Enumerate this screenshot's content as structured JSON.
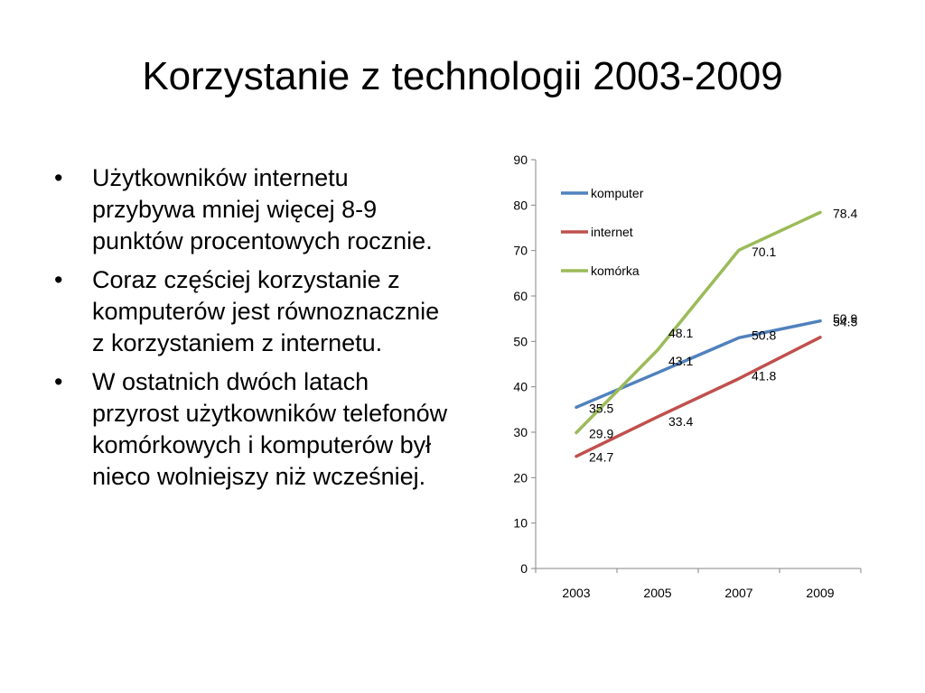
{
  "slide": {
    "title": "Korzystanie z technologii 2003-2009",
    "bullets": [
      "Użytkowników internetu przybywa mniej więcej 8-9 punktów procentowych rocznie.",
      "Coraz częściej korzystanie z komputerów jest równoznacznie z korzystaniem z internetu.",
      "W ostatnich dwóch latach przyrost użytkowników telefonów komórkowych i komputerów był nieco wolniejszy niż wcześniej."
    ]
  },
  "chart_data": {
    "type": "line",
    "categories": [
      "2003",
      "2005",
      "2007",
      "2009"
    ],
    "ylim": [
      0,
      90
    ],
    "yticks": [
      0,
      10,
      20,
      30,
      40,
      50,
      60,
      70,
      80,
      90
    ],
    "grid": false,
    "legend": "top-left",
    "series": [
      {
        "name": "komputer",
        "color": "#4f81bd",
        "values": [
          35.5,
          43.1,
          50.8,
          54.5
        ],
        "labels": [
          "35.5",
          "43.1",
          "50.8",
          "54.5"
        ]
      },
      {
        "name": "internet",
        "color": "#c0504d",
        "values": [
          24.7,
          33.4,
          41.8,
          50.9
        ],
        "labels": [
          "24.7",
          "33.4",
          "41.8",
          "50.9"
        ]
      },
      {
        "name": "komórka",
        "color": "#9bbb59",
        "values": [
          29.9,
          48.1,
          70.1,
          78.4
        ],
        "labels": [
          "29.9",
          "48.1",
          "70.1",
          "78.4"
        ]
      }
    ]
  }
}
